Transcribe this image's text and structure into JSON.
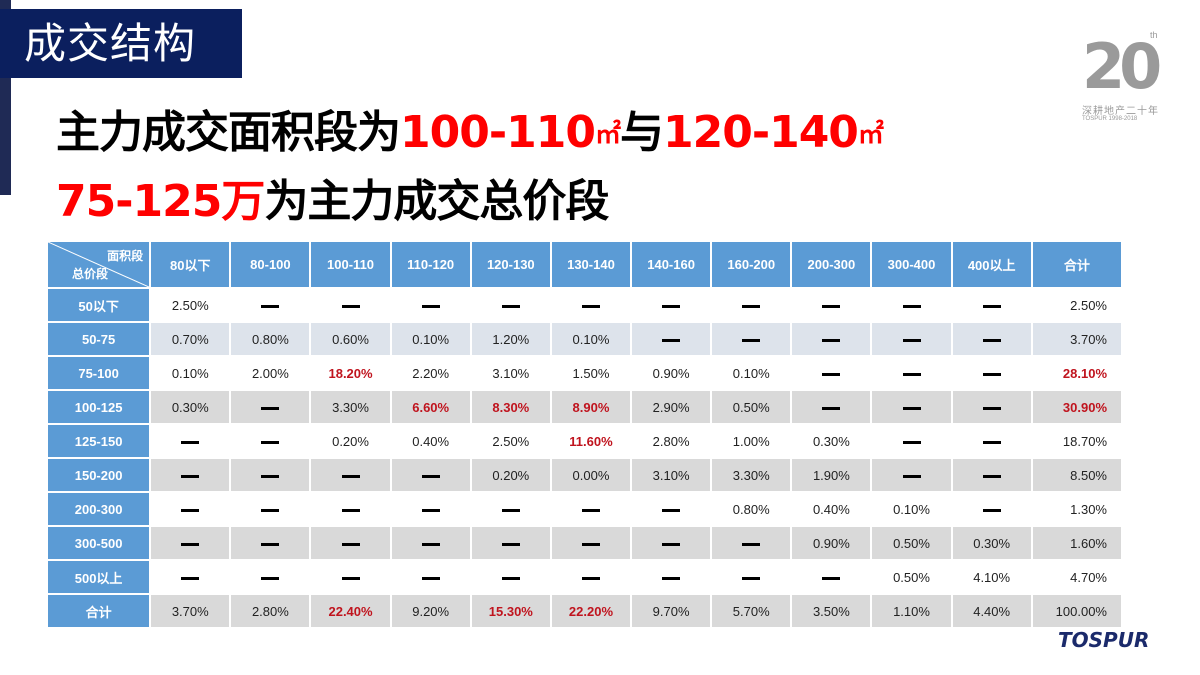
{
  "section": {
    "title": "成交结构"
  },
  "headline": {
    "line1": [
      {
        "text": "主力成交面积段为",
        "color": "black"
      },
      {
        "text": "100-110",
        "color": "red"
      },
      {
        "text": "㎡",
        "color": "red",
        "unit": true
      },
      {
        "text": "与",
        "color": "black"
      },
      {
        "text": "120-140",
        "color": "red"
      },
      {
        "text": "㎡",
        "color": "red",
        "unit": true
      }
    ],
    "line2": [
      {
        "text": "75-125万",
        "color": "red"
      },
      {
        "text": "为主力成交总价段",
        "color": "black"
      }
    ]
  },
  "logo": {
    "number": "20",
    "superscript": "th",
    "cn_text": "深耕地产二十年",
    "en_text": "TOSPUR 1998-2018"
  },
  "brand": {
    "name": "TOSPUR"
  },
  "colors": {
    "header_blue": "#5b9bd5",
    "navy": "#0b1f5e",
    "highlight_red": "#c0141e",
    "title_red": "#ff0000",
    "row_gray": "#d9d9d9"
  },
  "table": {
    "corner_top": "面积段",
    "corner_bottom": "总价段",
    "columns": [
      "80以下",
      "80-100",
      "100-110",
      "110-120",
      "120-130",
      "130-140",
      "140-160",
      "160-200",
      "200-300",
      "300-400",
      "400以上",
      "合计"
    ],
    "rows": [
      {
        "label": "50以下",
        "cells": [
          "2.50%",
          "—",
          "—",
          "—",
          "—",
          "—",
          "—",
          "—",
          "—",
          "—",
          "—",
          "2.50%"
        ],
        "highlight": []
      },
      {
        "label": "50-75",
        "cells": [
          "0.70%",
          "0.80%",
          "0.60%",
          "0.10%",
          "1.20%",
          "0.10%",
          "—",
          "—",
          "—",
          "—",
          "—",
          "3.70%"
        ],
        "highlight": []
      },
      {
        "label": "75-100",
        "cells": [
          "0.10%",
          "2.00%",
          "18.20%",
          "2.20%",
          "3.10%",
          "1.50%",
          "0.90%",
          "0.10%",
          "—",
          "—",
          "—",
          "28.10%"
        ],
        "highlight": [
          2,
          11
        ]
      },
      {
        "label": "100-125",
        "cells": [
          "0.30%",
          "—",
          "3.30%",
          "6.60%",
          "8.30%",
          "8.90%",
          "2.90%",
          "0.50%",
          "—",
          "—",
          "—",
          "30.90%"
        ],
        "highlight": [
          3,
          4,
          5,
          11
        ]
      },
      {
        "label": "125-150",
        "cells": [
          "—",
          "—",
          "0.20%",
          "0.40%",
          "2.50%",
          "11.60%",
          "2.80%",
          "1.00%",
          "0.30%",
          "—",
          "—",
          "18.70%"
        ],
        "highlight": [
          5
        ]
      },
      {
        "label": "150-200",
        "cells": [
          "—",
          "—",
          "—",
          "—",
          "0.20%",
          "0.00%",
          "3.10%",
          "3.30%",
          "1.90%",
          "—",
          "—",
          "8.50%"
        ],
        "highlight": []
      },
      {
        "label": "200-300",
        "cells": [
          "—",
          "—",
          "—",
          "—",
          "—",
          "—",
          "—",
          "0.80%",
          "0.40%",
          "0.10%",
          "—",
          "1.30%"
        ],
        "highlight": []
      },
      {
        "label": "300-500",
        "cells": [
          "—",
          "—",
          "—",
          "—",
          "—",
          "—",
          "—",
          "—",
          "0.90%",
          "0.50%",
          "0.30%",
          "1.60%"
        ],
        "highlight": []
      },
      {
        "label": "500以上",
        "cells": [
          "—",
          "—",
          "—",
          "—",
          "—",
          "—",
          "—",
          "—",
          "—",
          "0.50%",
          "4.10%",
          "4.70%"
        ],
        "highlight": []
      },
      {
        "label": "合计",
        "cells": [
          "3.70%",
          "2.80%",
          "22.40%",
          "9.20%",
          "15.30%",
          "22.20%",
          "9.70%",
          "5.70%",
          "3.50%",
          "1.10%",
          "4.40%",
          "100.00%"
        ],
        "highlight": [
          2,
          4,
          5
        ]
      }
    ]
  }
}
